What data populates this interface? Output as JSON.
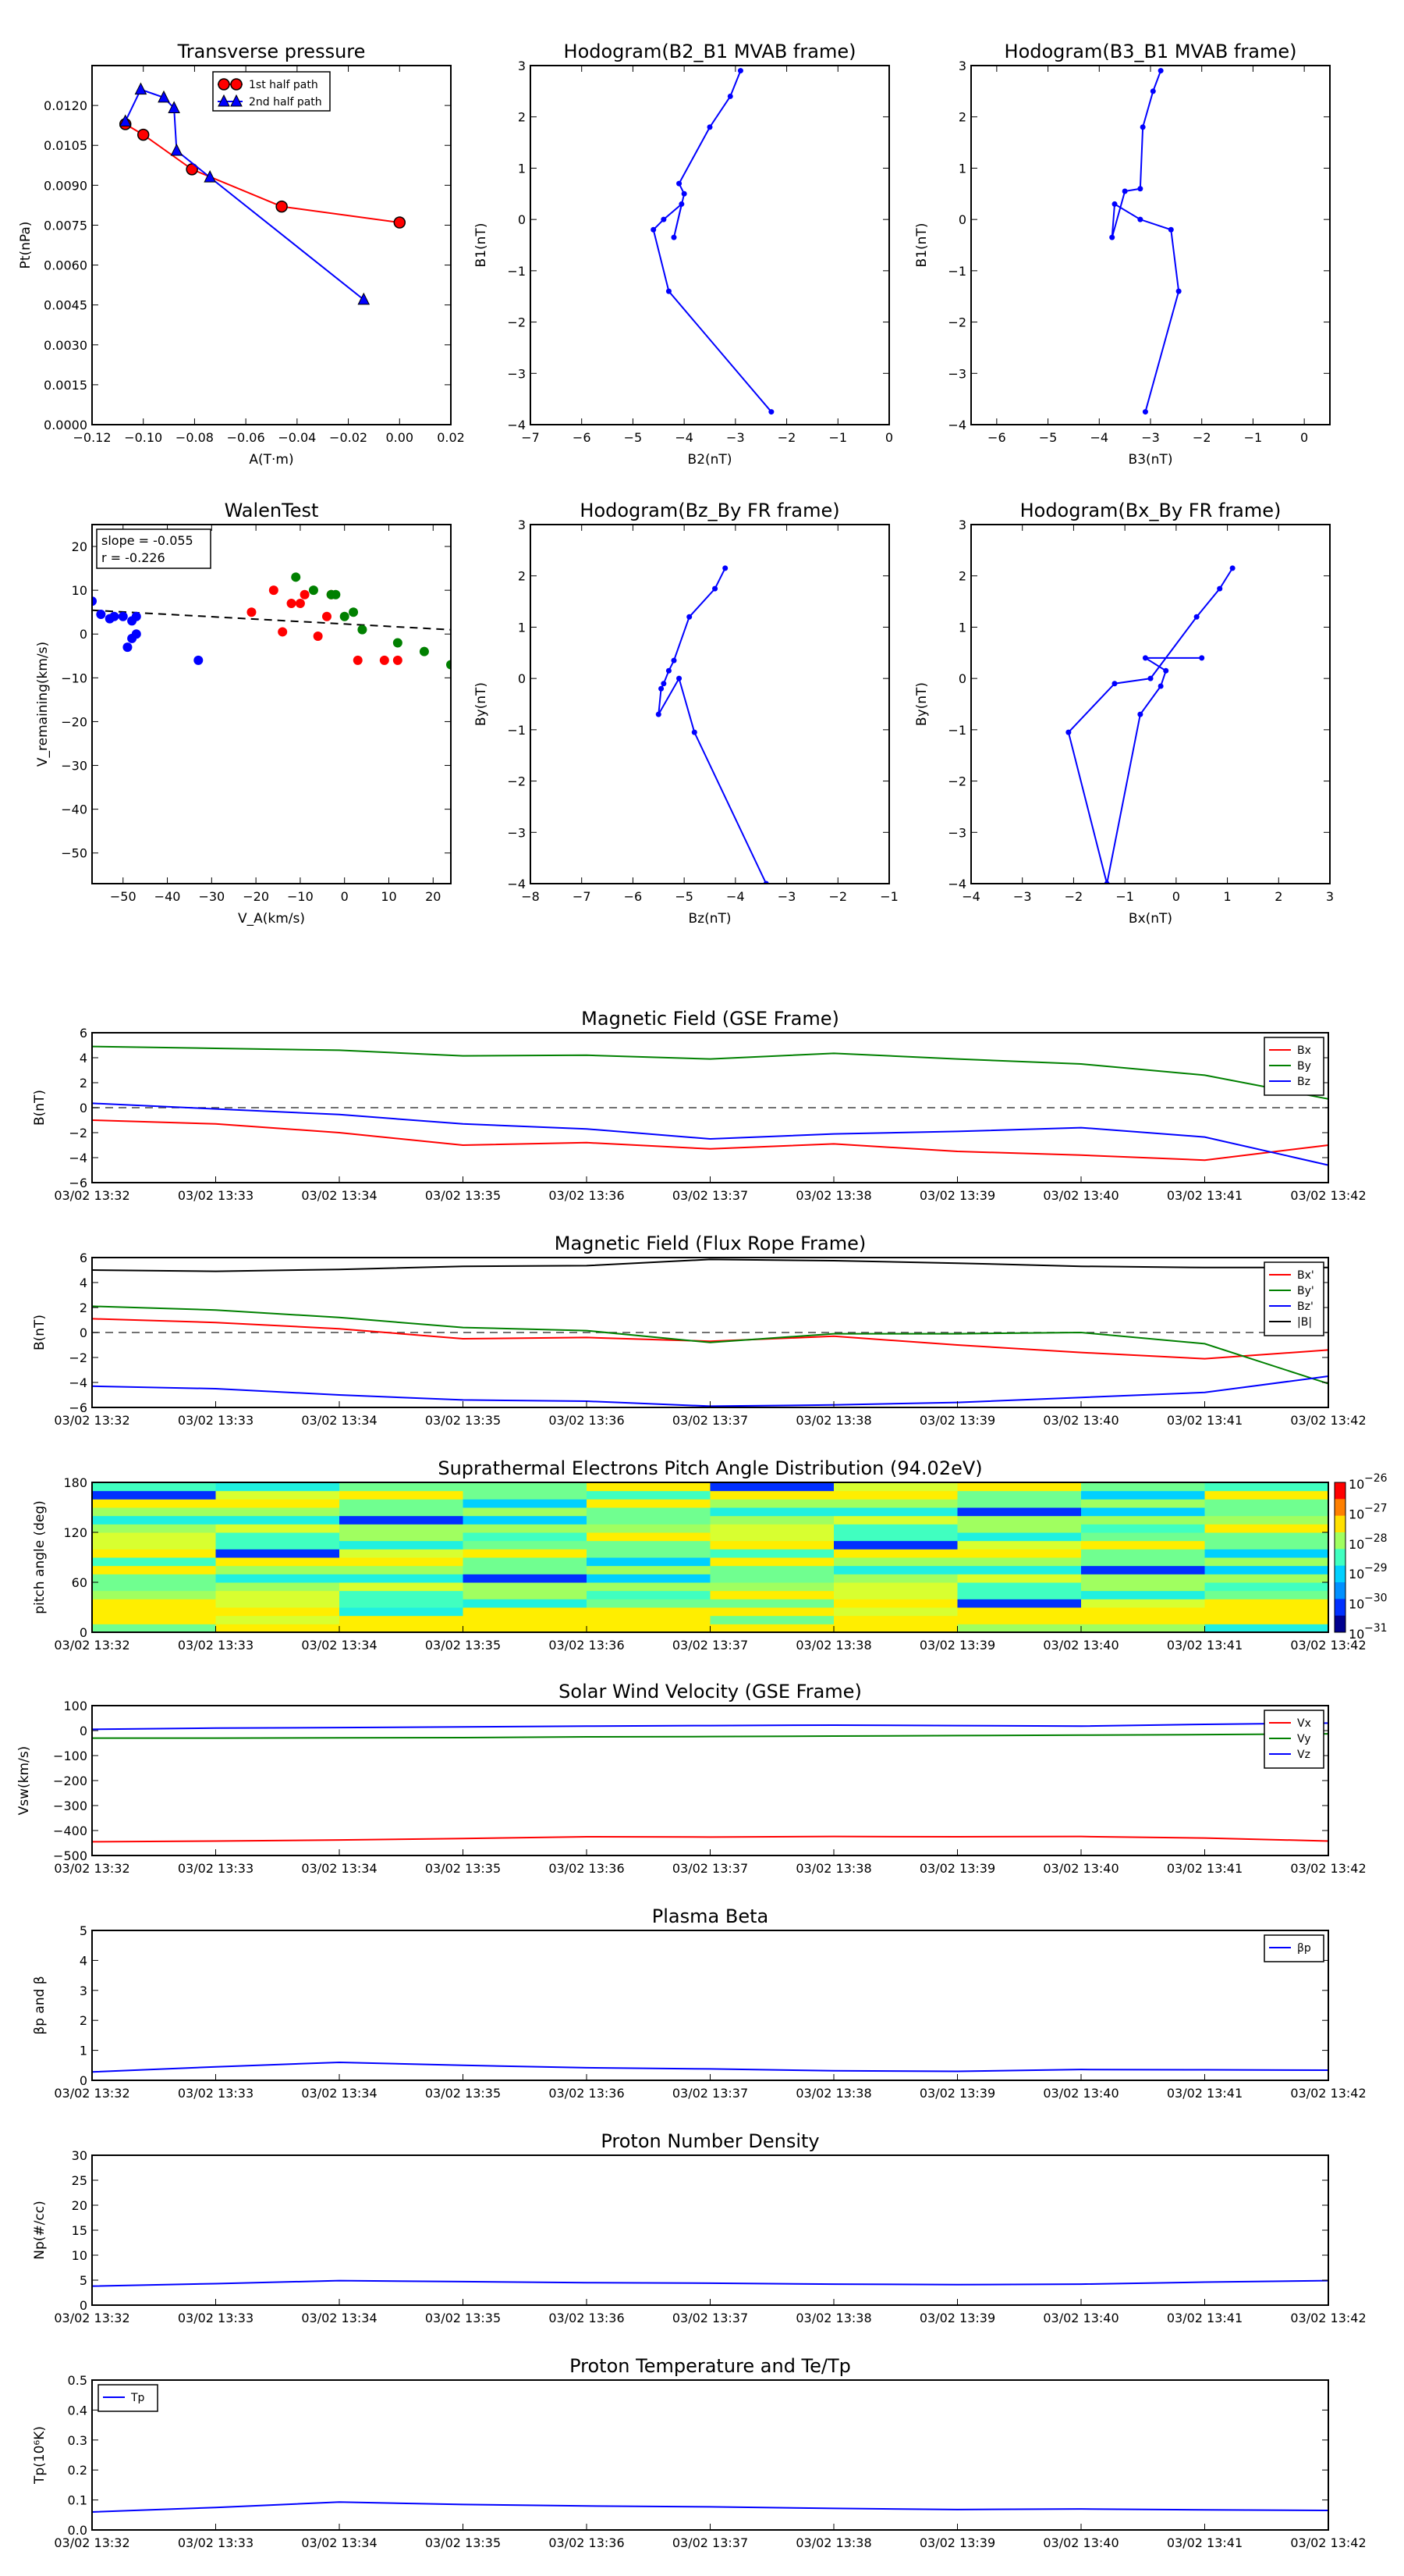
{
  "figure": {
    "time_ticks": [
      "03/02 13:32",
      "03/02 13:33",
      "03/02 13:34",
      "03/02 13:35",
      "03/02 13:36",
      "03/02 13:37",
      "03/02 13:38",
      "03/02 13:39",
      "03/02 13:40",
      "03/02 13:41",
      "03/02 13:42"
    ]
  },
  "chart_data": [
    {
      "id": "pt",
      "type": "line",
      "title": "Transverse pressure",
      "xlabel": "A(T·m)",
      "ylabel": "Pt(nPa)",
      "xlim": [
        -0.12,
        0.02
      ],
      "ylim": [
        0,
        0.0135
      ],
      "xticks": [
        -0.12,
        -0.1,
        -0.08,
        -0.06,
        -0.04,
        -0.02,
        0.0,
        0.02
      ],
      "xtick_labels": [
        "−0.12",
        "−0.10",
        "−0.08",
        "−0.06",
        "−0.04",
        "−0.02",
        "0.00",
        "0.02"
      ],
      "yticks": [
        0,
        0.0015,
        0.003,
        0.0045,
        0.006,
        0.0075,
        0.009,
        0.0105,
        0.012
      ],
      "ytick_labels": [
        "0.0000",
        "0.0015",
        "0.0030",
        "0.0045",
        "0.0060",
        "0.0075",
        "0.0090",
        "0.0105",
        "0.0120"
      ],
      "legend": {
        "position": "top-center",
        "entries": [
          "1st half path",
          "2nd half path"
        ]
      },
      "series": [
        {
          "name": "1st half path",
          "color": "#ff0000",
          "marker": "circle",
          "x": [
            -0.107,
            -0.1,
            -0.081,
            -0.046,
            0.0
          ],
          "y": [
            0.0113,
            0.0109,
            0.0096,
            0.0082,
            0.0076
          ]
        },
        {
          "name": "2nd half path",
          "color": "#0000ff",
          "marker": "triangle",
          "x": [
            -0.107,
            -0.101,
            -0.092,
            -0.088,
            -0.087,
            -0.074,
            -0.014
          ],
          "y": [
            0.0114,
            0.0126,
            0.0123,
            0.0119,
            0.0103,
            0.0093,
            0.0047
          ]
        }
      ]
    },
    {
      "id": "hodo1",
      "type": "line",
      "title": "Hodogram(B2_B1 MVAB frame)",
      "xlabel": "B2(nT)",
      "ylabel": "B1(nT)",
      "xlim": [
        -7,
        0
      ],
      "ylim": [
        -4,
        3
      ],
      "xticks": [
        -7,
        -6,
        -5,
        -4,
        -3,
        -2,
        -1,
        0
      ],
      "xtick_labels": [
        "−7",
        "−6",
        "−5",
        "−4",
        "−3",
        "−2",
        "−1",
        "0"
      ],
      "yticks": [
        -4,
        -3,
        -2,
        -1,
        0,
        1,
        2,
        3
      ],
      "ytick_labels": [
        "−4",
        "−3",
        "−2",
        "−1",
        "0",
        "1",
        "2",
        "3"
      ],
      "series": [
        {
          "color": "#0000ff",
          "marker": "dot",
          "x": [
            -2.9,
            -3.1,
            -3.5,
            -4.1,
            -4.0,
            -4.2,
            -4.05,
            -4.4,
            -4.6,
            -4.3,
            -2.3
          ],
          "y": [
            2.9,
            2.4,
            1.8,
            0.7,
            0.5,
            -0.35,
            0.3,
            0.0,
            -0.2,
            -1.4,
            -3.75
          ]
        }
      ]
    },
    {
      "id": "hodo2",
      "type": "line",
      "title": "Hodogram(B3_B1 MVAB frame)",
      "xlabel": "B3(nT)",
      "ylabel": "B1(nT)",
      "xlim": [
        -6.5,
        0.5
      ],
      "ylim": [
        -4,
        3
      ],
      "xticks": [
        -6,
        -5,
        -4,
        -3,
        -2,
        -1,
        0
      ],
      "xtick_labels": [
        "−6",
        "−5",
        "−4",
        "−3",
        "−2",
        "−1",
        "0"
      ],
      "yticks": [
        -4,
        -3,
        -2,
        -1,
        0,
        1,
        2,
        3
      ],
      "ytick_labels": [
        "−4",
        "−3",
        "−2",
        "−1",
        "0",
        "1",
        "2",
        "3"
      ],
      "series": [
        {
          "color": "#0000ff",
          "marker": "dot",
          "x": [
            -2.8,
            -2.95,
            -3.15,
            -3.2,
            -3.5,
            -3.75,
            -3.7,
            -3.2,
            -2.6,
            -2.45,
            -3.1
          ],
          "y": [
            2.9,
            2.5,
            1.8,
            0.6,
            0.55,
            -0.35,
            0.3,
            0.0,
            -0.2,
            -1.4,
            -3.75
          ]
        }
      ]
    },
    {
      "id": "walen",
      "type": "scatter",
      "title": "WalenTest",
      "xlabel": "V_A(km/s)",
      "ylabel": "V_remaining(km/s)",
      "xlim": [
        -57,
        24
      ],
      "ylim": [
        -57,
        25
      ],
      "xticks": [
        -50,
        -40,
        -30,
        -20,
        -10,
        0,
        10,
        20
      ],
      "xtick_labels": [
        "−50",
        "−40",
        "−30",
        "−20",
        "−10",
        "0",
        "10",
        "20"
      ],
      "yticks": [
        -50,
        -40,
        -30,
        -20,
        -10,
        0,
        10,
        20
      ],
      "ytick_labels": [
        "−50",
        "−40",
        "−30",
        "−20",
        "−10",
        "0",
        "10",
        "20"
      ],
      "annotation": [
        "slope = -0.055",
        "r = -0.226"
      ],
      "fit_line": {
        "slope": -0.055,
        "intercept": 2.3,
        "color": "#000000",
        "style": "dashed"
      },
      "series": [
        {
          "color": "#0000ff",
          "x": [
            -57,
            -55,
            -53,
            -52,
            -50,
            -48,
            -47,
            -47,
            -48,
            -49,
            -33
          ],
          "y": [
            7.5,
            4.5,
            3.5,
            4,
            4,
            3,
            4,
            0,
            -1,
            -3,
            -6
          ]
        },
        {
          "color": "#ff0000",
          "x": [
            -21,
            -16,
            -14,
            -12,
            -10,
            -9,
            -6,
            -4,
            -3,
            3,
            9,
            12
          ],
          "y": [
            5,
            10,
            0.5,
            7,
            7,
            9,
            -0.5,
            4,
            9,
            -6,
            -6,
            -6
          ]
        },
        {
          "color": "#008000",
          "x": [
            -11,
            -7,
            -3,
            -2,
            0,
            2,
            4,
            12,
            18,
            24
          ],
          "y": [
            13,
            10,
            9,
            9,
            4,
            5,
            1,
            -2,
            -4,
            -7
          ]
        }
      ]
    },
    {
      "id": "hodo3",
      "type": "line",
      "title": "Hodogram(Bz_By FR frame)",
      "xlabel": "Bz(nT)",
      "ylabel": "By(nT)",
      "xlim": [
        -8,
        -1
      ],
      "ylim": [
        -4,
        3
      ],
      "xticks": [
        -8,
        -7,
        -6,
        -5,
        -4,
        -3,
        -2,
        -1
      ],
      "xtick_labels": [
        "−8",
        "−7",
        "−6",
        "−5",
        "−4",
        "−3",
        "−2",
        "−1"
      ],
      "yticks": [
        -4,
        -3,
        -2,
        -1,
        0,
        1,
        2,
        3
      ],
      "ytick_labels": [
        "−4",
        "−3",
        "−2",
        "−1",
        "0",
        "1",
        "2",
        "3"
      ],
      "series": [
        {
          "color": "#0000ff",
          "marker": "dot",
          "x": [
            -4.2,
            -4.4,
            -4.9,
            -5.2,
            -5.3,
            -5.4,
            -5.45,
            -5.5,
            -5.1,
            -4.8,
            -3.4
          ],
          "y": [
            2.15,
            1.75,
            1.2,
            0.35,
            0.15,
            -0.1,
            -0.2,
            -0.7,
            0.0,
            -1.05,
            -4.0
          ]
        }
      ]
    },
    {
      "id": "hodo4",
      "type": "line",
      "title": "Hodogram(Bx_By FR frame)",
      "xlabel": "Bx(nT)",
      "ylabel": "By(nT)",
      "xlim": [
        -4,
        3
      ],
      "ylim": [
        -4,
        3
      ],
      "xticks": [
        -4,
        -3,
        -2,
        -1,
        0,
        1,
        2,
        3
      ],
      "xtick_labels": [
        "−4",
        "−3",
        "−2",
        "−1",
        "0",
        "1",
        "2",
        "3"
      ],
      "yticks": [
        -4,
        -3,
        -2,
        -1,
        0,
        1,
        2,
        3
      ],
      "ytick_labels": [
        "−4",
        "−3",
        "−2",
        "−1",
        "0",
        "1",
        "2",
        "3"
      ],
      "series": [
        {
          "color": "#0000ff",
          "marker": "dot",
          "x": [
            1.1,
            0.85,
            0.4,
            -0.5,
            -1.2,
            -2.1,
            -1.35,
            -0.7,
            -0.3,
            -0.2,
            -0.6,
            0.5
          ],
          "y": [
            2.15,
            1.75,
            1.2,
            0.0,
            -0.1,
            -1.05,
            -4.0,
            -0.7,
            -0.15,
            0.15,
            0.4,
            0.4
          ]
        }
      ]
    },
    {
      "id": "bgse",
      "type": "line",
      "title": "Magnetic Field (GSE Frame)",
      "ylabel": "B(nT)",
      "ylim": [
        -6,
        6
      ],
      "yticks": [
        -6,
        -4,
        -2,
        0,
        2,
        4,
        6
      ],
      "ytick_labels": [
        "−6",
        "−4",
        "−2",
        "0",
        "2",
        "4",
        "6"
      ],
      "zero_line": true,
      "legend": {
        "position": "top-right",
        "entries": [
          "Bx",
          "By",
          "Bz"
        ]
      },
      "series": [
        {
          "name": "Bx",
          "color": "#ff0000",
          "y": [
            -1.0,
            -1.3,
            -2.0,
            -3.0,
            -2.8,
            -3.3,
            -2.9,
            -3.5,
            -3.8,
            -4.2,
            -3.0
          ]
        },
        {
          "name": "By",
          "color": "#008000",
          "y": [
            4.9,
            4.75,
            4.6,
            4.15,
            4.2,
            3.9,
            4.35,
            3.9,
            3.5,
            2.6,
            0.7
          ]
        },
        {
          "name": "Bz",
          "color": "#0000ff",
          "y": [
            0.35,
            -0.1,
            -0.55,
            -1.3,
            -1.7,
            -2.5,
            -2.1,
            -1.9,
            -1.6,
            -2.35,
            -4.6
          ]
        }
      ]
    },
    {
      "id": "bfr",
      "type": "line",
      "title": "Magnetic Field (Flux Rope Frame)",
      "ylabel": "B(nT)",
      "ylim": [
        -6,
        6
      ],
      "yticks": [
        -6,
        -4,
        -2,
        0,
        2,
        4,
        6
      ],
      "ytick_labels": [
        "−6",
        "−4",
        "−2",
        "0",
        "2",
        "4",
        "6"
      ],
      "zero_line": true,
      "legend": {
        "position": "top-right",
        "entries": [
          "Bx'",
          "By'",
          "Bz'",
          "|B|"
        ]
      },
      "series": [
        {
          "name": "Bx'",
          "color": "#ff0000",
          "y": [
            1.1,
            0.8,
            0.3,
            -0.5,
            -0.4,
            -0.7,
            -0.3,
            -1.0,
            -1.6,
            -2.1,
            -1.4
          ]
        },
        {
          "name": "By'",
          "color": "#008000",
          "y": [
            2.1,
            1.8,
            1.2,
            0.4,
            0.15,
            -0.8,
            -0.1,
            -0.1,
            0.0,
            -0.9,
            -4.1
          ]
        },
        {
          "name": "Bz'",
          "color": "#0000ff",
          "y": [
            -4.3,
            -4.5,
            -5.0,
            -5.4,
            -5.5,
            -5.9,
            -5.8,
            -5.6,
            -5.2,
            -4.8,
            -3.5
          ]
        },
        {
          "name": "|B|",
          "color": "#000000",
          "y": [
            5.0,
            4.9,
            5.05,
            5.3,
            5.35,
            5.85,
            5.75,
            5.55,
            5.3,
            5.2,
            5.2
          ]
        }
      ]
    },
    {
      "id": "pad",
      "type": "heatmap",
      "title": "Suprathermal Electrons Pitch Angle Distribution (94.02eV)",
      "ylabel": "pitch angle (deg)",
      "ylim": [
        0,
        180
      ],
      "yticks": [
        0,
        60,
        120,
        180
      ],
      "ytick_labels": [
        "0",
        "60",
        "120",
        "180"
      ],
      "colorbar": {
        "ticks": [
          "10",
          "10",
          "10",
          "10",
          "10",
          "10"
        ],
        "exponents": [
          "−26",
          "−27",
          "−28",
          "−29",
          "−30",
          "−31"
        ]
      },
      "columns": 10,
      "bins": 18
    },
    {
      "id": "vsw",
      "type": "line",
      "title": "Solar Wind Velocity (GSE Frame)",
      "ylabel": "Vsw(km/s)",
      "ylim": [
        -500,
        100
      ],
      "yticks": [
        -500,
        -400,
        -300,
        -200,
        -100,
        0,
        100
      ],
      "ytick_labels": [
        "−500",
        "−400",
        "−300",
        "−200",
        "−100",
        "0",
        "100"
      ],
      "legend": {
        "position": "top-right",
        "entries": [
          "Vx",
          "Vy",
          "Vz"
        ]
      },
      "series": [
        {
          "name": "Vx",
          "color": "#ff0000",
          "y": [
            -445,
            -442,
            -438,
            -432,
            -425,
            -426,
            -424,
            -425,
            -424,
            -430,
            -442
          ]
        },
        {
          "name": "Vy",
          "color": "#008000",
          "y": [
            -30,
            -30,
            -29,
            -28,
            -25,
            -24,
            -22,
            -20,
            -18,
            -16,
            -13
          ]
        },
        {
          "name": "Vz",
          "color": "#0000ff",
          "y": [
            5,
            10,
            12,
            15,
            18,
            20,
            22,
            20,
            18,
            25,
            30
          ]
        }
      ]
    },
    {
      "id": "beta",
      "type": "line",
      "title": "Plasma Beta",
      "ylabel": "βp and β",
      "ylim": [
        0,
        5
      ],
      "yticks": [
        0,
        1,
        2,
        3,
        4,
        5
      ],
      "ytick_labels": [
        "0",
        "1",
        "2",
        "3",
        "4",
        "5"
      ],
      "legend": {
        "position": "top-right",
        "entries": [
          "βp"
        ]
      },
      "series": [
        {
          "name": "βp",
          "color": "#0000ff",
          "y": [
            0.28,
            0.45,
            0.6,
            0.5,
            0.42,
            0.38,
            0.32,
            0.3,
            0.36,
            0.35,
            0.34
          ]
        }
      ]
    },
    {
      "id": "np",
      "type": "line",
      "title": "Proton Number Density",
      "ylabel": "Np(#/cc)",
      "ylim": [
        0,
        30
      ],
      "yticks": [
        0,
        5,
        10,
        15,
        20,
        25,
        30
      ],
      "ytick_labels": [
        "0",
        "5",
        "10",
        "15",
        "20",
        "25",
        "30"
      ],
      "series": [
        {
          "color": "#0000ff",
          "y": [
            3.8,
            4.3,
            4.9,
            4.7,
            4.5,
            4.4,
            4.2,
            4.1,
            4.2,
            4.6,
            4.9
          ]
        }
      ]
    },
    {
      "id": "tp",
      "type": "line",
      "title": "Proton Temperature and Te/Tp",
      "ylabel": "Tp(10⁶K)",
      "ylim": [
        0,
        0.5
      ],
      "yticks": [
        0,
        0.1,
        0.2,
        0.3,
        0.4,
        0.5
      ],
      "ytick_labels": [
        "0.0",
        "0.1",
        "0.2",
        "0.3",
        "0.4",
        "0.5"
      ],
      "legend": {
        "position": "top-left",
        "entries": [
          "Tp"
        ]
      },
      "series": [
        {
          "name": "Tp",
          "color": "#0000ff",
          "y": [
            0.06,
            0.075,
            0.093,
            0.085,
            0.08,
            0.077,
            0.072,
            0.068,
            0.07,
            0.067,
            0.065
          ]
        }
      ]
    }
  ]
}
